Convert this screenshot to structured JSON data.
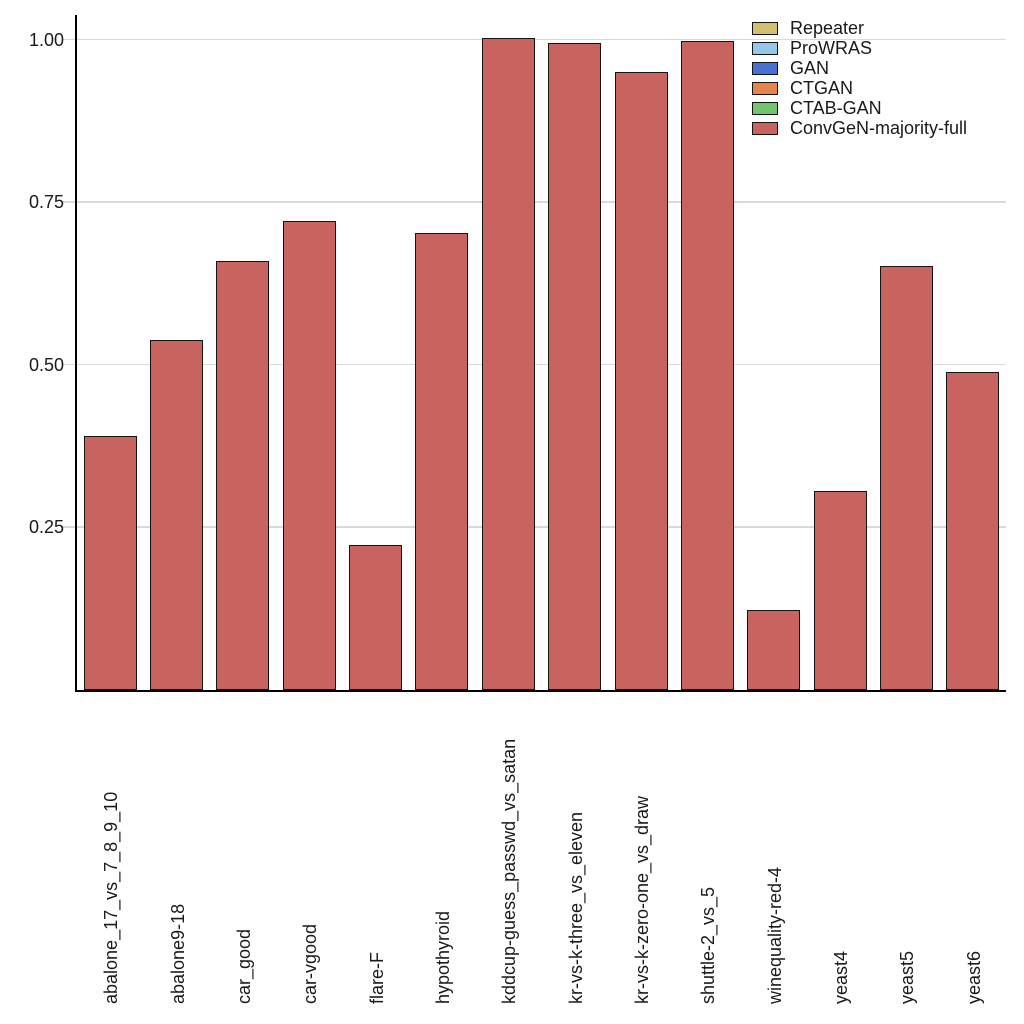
{
  "chart_data": {
    "type": "bar",
    "title": "",
    "xlabel": "",
    "ylabel": "",
    "categories": [
      "abalone_17_vs_7_8_9_10",
      "abalone9-18",
      "car_good",
      "car-vgood",
      "flare-F",
      "hypothyroid",
      "kddcup-guess_passwd_vs_satan",
      "kr-vs-k-three_vs_eleven",
      "kr-vs-k-zero-one_vs_draw",
      "shuttle-2_vs_5",
      "winequality-red-4",
      "yeast4",
      "yeast5",
      "yeast6"
    ],
    "series": [
      {
        "name": "ConvGeN-majority-full",
        "values": [
          0.39,
          0.538,
          0.66,
          0.721,
          0.222,
          0.703,
          1.003,
          0.995,
          0.95,
          0.998,
          0.122,
          0.306,
          0.652,
          0.489
        ]
      }
    ],
    "visible_series": "ConvGeN-majority-full",
    "ylim": [
      0,
      1.04
    ],
    "yticks": [
      {
        "label": "1.00",
        "value": 1.0
      },
      {
        "label": "0.75",
        "value": 0.75
      },
      {
        "label": "0.50",
        "value": 0.5
      },
      {
        "label": "0.25",
        "value": 0.25
      }
    ],
    "grid": "horizontal",
    "legend_position": "upper right",
    "legend": [
      {
        "label": "Repeater",
        "color": "#d3bf6f"
      },
      {
        "label": "ProWRAS",
        "color": "#94c7e8"
      },
      {
        "label": "GAN",
        "color": "#4a70d2"
      },
      {
        "label": "CTGAN",
        "color": "#e5854b"
      },
      {
        "label": "CTAB-GAN",
        "color": "#72c46d"
      },
      {
        "label": "ConvGeN-majority-full",
        "color": "#c9635f"
      }
    ],
    "colors": {
      "bar_fill": "#c9635f",
      "bar_edge": "#141414",
      "grid": "#d9d9d9",
      "spine": "#000000"
    }
  }
}
